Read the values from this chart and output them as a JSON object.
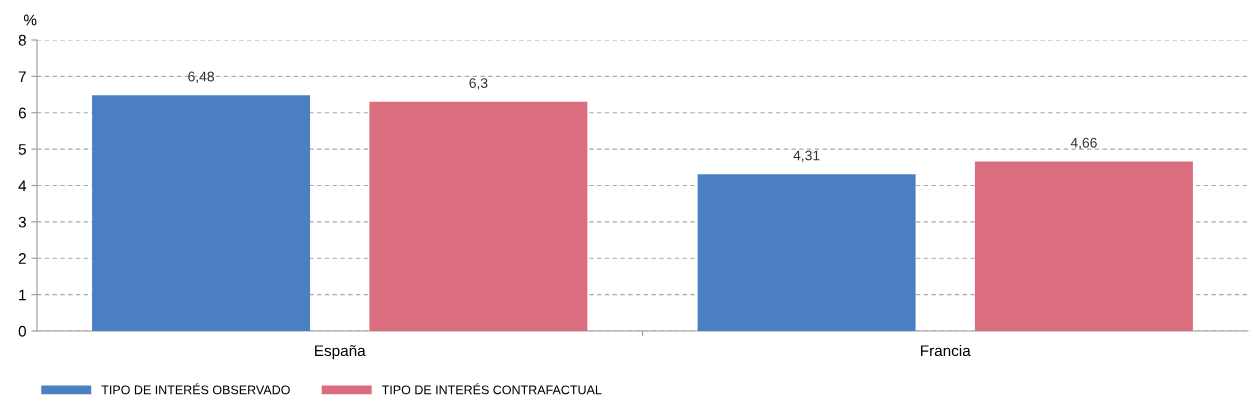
{
  "chart_data": {
    "type": "bar",
    "ylabel": "%",
    "categories": [
      "España",
      "Francia"
    ],
    "series": [
      {
        "name": "TIPO DE INTERÉS OBSERVADO",
        "color": "#4a7fc1",
        "values": [
          6.48,
          4.31
        ],
        "value_labels": [
          "6,48",
          "4,31"
        ]
      },
      {
        "name": "TIPO DE INTERÉS CONTRAFACTUAL",
        "color": "#db6e7e",
        "values": [
          6.3,
          4.66
        ],
        "value_labels": [
          "6,3",
          "4,66"
        ]
      }
    ],
    "ylim": [
      0,
      8
    ],
    "yticks": [
      0,
      1,
      2,
      3,
      4,
      5,
      6,
      7,
      8
    ],
    "grid": "y",
    "legend": "bottom left"
  }
}
